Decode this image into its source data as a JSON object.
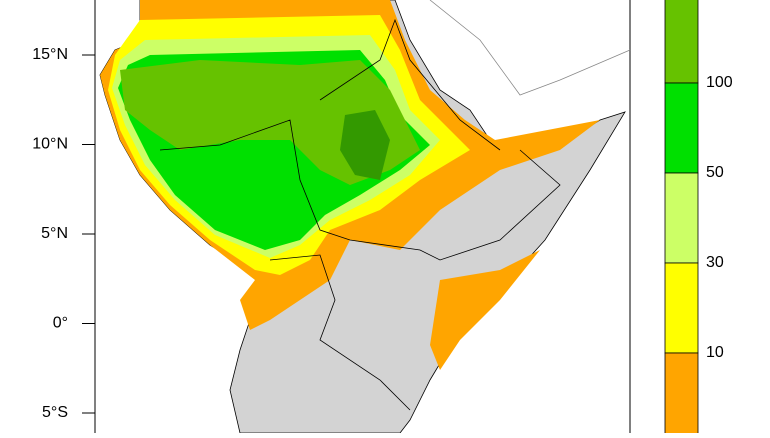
{
  "latitude_labels": [
    "15°N",
    "10°N",
    "5°N",
    "0°",
    "5°S"
  ],
  "colorbar": {
    "labels": [
      "100",
      "50",
      "30",
      "10"
    ],
    "colors": [
      "#66c200",
      "#00e000",
      "#ccff66",
      "#ffff00",
      "#ffa500"
    ]
  }
}
